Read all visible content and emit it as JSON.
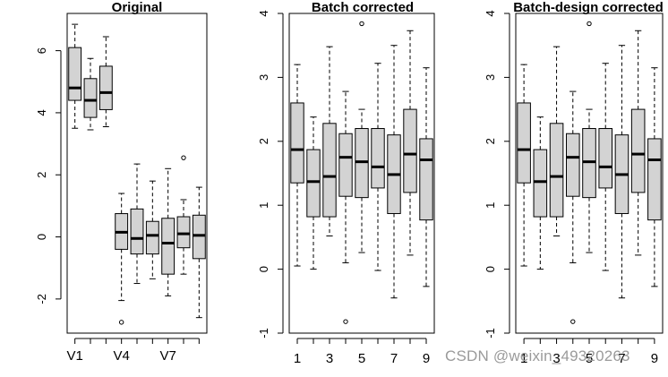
{
  "chart_data": [
    {
      "type": "box",
      "title": "Original",
      "xlabel": "",
      "ylabel": "",
      "ylim": [
        -3.1,
        7.2
      ],
      "yticks": [
        -2,
        0,
        2,
        4,
        6
      ],
      "ytick_labels": [
        "-2",
        "0",
        "2",
        "4",
        "6"
      ],
      "categories": [
        "V1",
        "V2",
        "V3",
        "V4",
        "V5",
        "V6",
        "V7",
        "V8",
        "V9"
      ],
      "xtick_labels": [
        "V1",
        "V4",
        "V7"
      ],
      "xtick_positions": [
        1,
        4,
        7
      ],
      "boxes": [
        {
          "name": "V1",
          "lower_whisker": 3.5,
          "q1": 4.4,
          "median": 4.8,
          "q3": 6.1,
          "upper_whisker": 6.85,
          "outliers": []
        },
        {
          "name": "V2",
          "lower_whisker": 3.45,
          "q1": 3.85,
          "median": 4.4,
          "q3": 5.1,
          "upper_whisker": 5.75,
          "outliers": []
        },
        {
          "name": "V3",
          "lower_whisker": 3.55,
          "q1": 4.1,
          "median": 4.65,
          "q3": 5.5,
          "upper_whisker": 6.45,
          "outliers": []
        },
        {
          "name": "V4",
          "lower_whisker": -2.05,
          "q1": -0.4,
          "median": 0.15,
          "q3": 0.75,
          "upper_whisker": 1.4,
          "outliers": [
            -2.75
          ]
        },
        {
          "name": "V5",
          "lower_whisker": -1.5,
          "q1": -0.55,
          "median": -0.05,
          "q3": 0.9,
          "upper_whisker": 2.35,
          "outliers": []
        },
        {
          "name": "V6",
          "lower_whisker": -1.35,
          "q1": -0.55,
          "median": 0.05,
          "q3": 0.5,
          "upper_whisker": 1.8,
          "outliers": []
        },
        {
          "name": "V7",
          "lower_whisker": -1.9,
          "q1": -1.2,
          "median": -0.2,
          "q3": 0.6,
          "upper_whisker": 2.2,
          "outliers": []
        },
        {
          "name": "V8",
          "lower_whisker": -1.2,
          "q1": -0.35,
          "median": 0.1,
          "q3": 0.65,
          "upper_whisker": 1.2,
          "outliers": [
            2.55
          ]
        },
        {
          "name": "V9",
          "lower_whisker": -2.6,
          "q1": -0.7,
          "median": 0.05,
          "q3": 0.7,
          "upper_whisker": 1.6,
          "outliers": []
        }
      ]
    },
    {
      "type": "box",
      "title": "Batch corrected",
      "xlabel": "",
      "ylabel": "",
      "ylim": [
        -1.0,
        4.0
      ],
      "yticks": [
        -1,
        0,
        1,
        2,
        3,
        4
      ],
      "ytick_labels": [
        "-1",
        "0",
        "1",
        "2",
        "3",
        "4"
      ],
      "categories": [
        "1",
        "2",
        "3",
        "4",
        "5",
        "6",
        "7",
        "8",
        "9"
      ],
      "xtick_labels": [
        "1",
        "3",
        "5",
        "7",
        "9"
      ],
      "xtick_positions": [
        1,
        3,
        5,
        7,
        9
      ],
      "boxes": [
        {
          "name": "1",
          "lower_whisker": 0.05,
          "q1": 1.35,
          "median": 1.87,
          "q3": 2.6,
          "upper_whisker": 3.2,
          "outliers": []
        },
        {
          "name": "2",
          "lower_whisker": 0.0,
          "q1": 0.82,
          "median": 1.37,
          "q3": 1.87,
          "upper_whisker": 2.38,
          "outliers": []
        },
        {
          "name": "3",
          "lower_whisker": 0.52,
          "q1": 0.82,
          "median": 1.45,
          "q3": 2.28,
          "upper_whisker": 3.48,
          "outliers": []
        },
        {
          "name": "4",
          "lower_whisker": 0.1,
          "q1": 1.14,
          "median": 1.75,
          "q3": 2.12,
          "upper_whisker": 2.78,
          "outliers": [
            -0.82
          ]
        },
        {
          "name": "5",
          "lower_whisker": 0.26,
          "q1": 1.12,
          "median": 1.68,
          "q3": 2.2,
          "upper_whisker": 2.5,
          "outliers": [
            3.84
          ]
        },
        {
          "name": "6",
          "lower_whisker": -0.02,
          "q1": 1.27,
          "median": 1.6,
          "q3": 2.2,
          "upper_whisker": 3.22,
          "outliers": []
        },
        {
          "name": "7",
          "lower_whisker": -0.45,
          "q1": 0.87,
          "median": 1.48,
          "q3": 2.1,
          "upper_whisker": 3.5,
          "outliers": []
        },
        {
          "name": "8",
          "lower_whisker": 0.22,
          "q1": 1.2,
          "median": 1.8,
          "q3": 2.5,
          "upper_whisker": 3.73,
          "outliers": []
        },
        {
          "name": "9",
          "lower_whisker": -0.27,
          "q1": 0.77,
          "median": 1.71,
          "q3": 2.04,
          "upper_whisker": 3.15,
          "outliers": []
        }
      ]
    },
    {
      "type": "box",
      "title": "Batch-design corrected",
      "xlabel": "",
      "ylabel": "",
      "ylim": [
        -1.0,
        4.0
      ],
      "yticks": [
        -1,
        0,
        1,
        2,
        3,
        4
      ],
      "ytick_labels": [
        "-1",
        "0",
        "1",
        "2",
        "3",
        "4"
      ],
      "categories": [
        "1",
        "2",
        "3",
        "4",
        "5",
        "6",
        "7",
        "8",
        "9"
      ],
      "xtick_labels": [
        "1",
        "3",
        "5",
        "7",
        "9"
      ],
      "xtick_positions": [
        1,
        3,
        5,
        7,
        9
      ],
      "boxes": [
        {
          "name": "1",
          "lower_whisker": 0.05,
          "q1": 1.35,
          "median": 1.87,
          "q3": 2.6,
          "upper_whisker": 3.2,
          "outliers": []
        },
        {
          "name": "2",
          "lower_whisker": 0.0,
          "q1": 0.82,
          "median": 1.37,
          "q3": 1.87,
          "upper_whisker": 2.38,
          "outliers": []
        },
        {
          "name": "3",
          "lower_whisker": 0.52,
          "q1": 0.82,
          "median": 1.45,
          "q3": 2.28,
          "upper_whisker": 3.48,
          "outliers": []
        },
        {
          "name": "4",
          "lower_whisker": 0.1,
          "q1": 1.14,
          "median": 1.75,
          "q3": 2.12,
          "upper_whisker": 2.78,
          "outliers": [
            -0.82
          ]
        },
        {
          "name": "5",
          "lower_whisker": 0.26,
          "q1": 1.12,
          "median": 1.68,
          "q3": 2.2,
          "upper_whisker": 2.5,
          "outliers": [
            3.84
          ]
        },
        {
          "name": "6",
          "lower_whisker": -0.02,
          "q1": 1.27,
          "median": 1.6,
          "q3": 2.2,
          "upper_whisker": 3.22,
          "outliers": []
        },
        {
          "name": "7",
          "lower_whisker": -0.45,
          "q1": 0.87,
          "median": 1.48,
          "q3": 2.1,
          "upper_whisker": 3.5,
          "outliers": []
        },
        {
          "name": "8",
          "lower_whisker": 0.22,
          "q1": 1.2,
          "median": 1.8,
          "q3": 2.5,
          "upper_whisker": 3.73,
          "outliers": []
        },
        {
          "name": "9",
          "lower_whisker": -0.27,
          "q1": 0.77,
          "median": 1.71,
          "q3": 2.04,
          "upper_whisker": 3.15,
          "outliers": []
        }
      ]
    }
  ],
  "colors": {
    "box_fill": "#d3d3d3",
    "stroke": "#000000",
    "background": "#ffffff",
    "watermark": "#9a9a9a"
  },
  "watermark": "CSDN @weixin_49320263"
}
